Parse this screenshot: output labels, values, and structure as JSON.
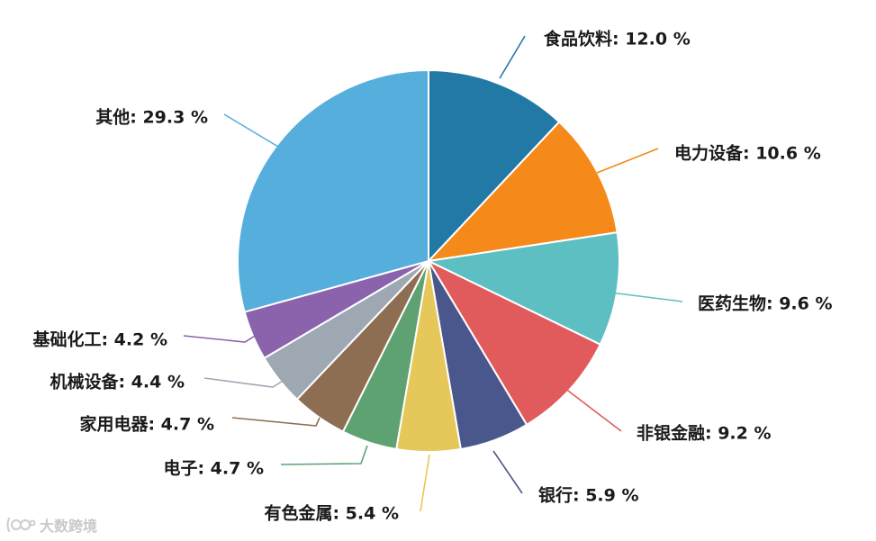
{
  "chart_data": {
    "type": "pie",
    "title": "",
    "unit": "%",
    "slices": [
      {
        "name": "食品饮料",
        "value": 12.0,
        "label": "食品饮料: 12.0 %",
        "color": "#2279a6"
      },
      {
        "name": "电力设备",
        "value": 10.6,
        "label": "电力设备: 10.6 %",
        "color": "#f5891a"
      },
      {
        "name": "医药生物",
        "value": 9.6,
        "label": "医药生物: 9.6 %",
        "color": "#5ebfc2"
      },
      {
        "name": "非银金融",
        "value": 9.2,
        "label": "非银金融: 9.2 %",
        "color": "#e15b5c"
      },
      {
        "name": "银行",
        "value": 5.9,
        "label": "银行: 5.9 %",
        "color": "#4a578c"
      },
      {
        "name": "有色金属",
        "value": 5.4,
        "label": "有色金属: 5.4 %",
        "color": "#e6c75a"
      },
      {
        "name": "电子",
        "value": 4.7,
        "label": "电子: 4.7 %",
        "color": "#5fa272"
      },
      {
        "name": "家用电器",
        "value": 4.7,
        "label": "家用电器: 4.7 %",
        "color": "#8e6e52"
      },
      {
        "name": "机械设备",
        "value": 4.4,
        "label": "机械设备: 4.4 %",
        "color": "#9ea8b2"
      },
      {
        "name": "基础化工",
        "value": 4.2,
        "label": "基础化工: 4.2 %",
        "color": "#8b63ac"
      },
      {
        "name": "其他",
        "value": 29.3,
        "label": "其他: 29.3 %",
        "color": "#55aedc"
      }
    ]
  },
  "watermark": {
    "text": "大数跨境"
  }
}
